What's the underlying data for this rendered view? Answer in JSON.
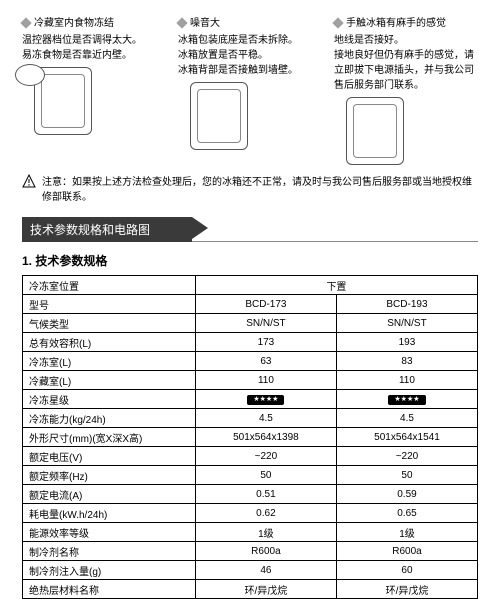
{
  "troubleshoot": {
    "col1": {
      "title": "冷藏室内食物冻结",
      "lines": [
        "温控器档位是否调得太大。",
        "易冻食物是否靠近内壁。"
      ]
    },
    "col2": {
      "title": "噪音大",
      "lines": [
        "冰箱包装底座是否未拆除。",
        "冰箱放置是否平稳。",
        "冰箱背部是否接触到墙壁。"
      ]
    },
    "col3": {
      "title": "手触冰箱有麻手的感觉",
      "lines": [
        "地线是否接好。",
        "接地良好但仍有麻手的感觉，请立即拔下电源插头，并与我公司售后服务部门联系。"
      ]
    }
  },
  "notice": {
    "label": "注意：",
    "text": "如果按上述方法检查处理后，您的冰箱还不正常，请及时与我公司售后服务部或当地授权维修部联系。"
  },
  "section_title": "技术参数规格和电路图",
  "subheading": "1. 技术参数规格",
  "table": {
    "header": {
      "c1": "冷冻室位置",
      "c2": "下置"
    },
    "rows": [
      {
        "label": "型号",
        "v1": "BCD-173",
        "v2": "BCD-193"
      },
      {
        "label": "气候类型",
        "v1": "SN/N/ST",
        "v2": "SN/N/ST"
      },
      {
        "label": "总有效容积(L)",
        "v1": "173",
        "v2": "193"
      },
      {
        "label": "冷冻室(L)",
        "v1": "63",
        "v2": "83"
      },
      {
        "label": "冷藏室(L)",
        "v1": "110",
        "v2": "110"
      },
      {
        "label": "冷冻星级",
        "v1": "__BADGE__",
        "v2": "__BADGE__"
      },
      {
        "label": "冷冻能力(kg/24h)",
        "v1": "4.5",
        "v2": "4.5"
      },
      {
        "label": "外形尺寸(mm)(宽X深X高)",
        "v1": "501x564x1398",
        "v2": "501x564x1541"
      },
      {
        "label": "额定电压(V)",
        "v1": "~220",
        "v2": "~220"
      },
      {
        "label": "额定频率(Hz)",
        "v1": "50",
        "v2": "50"
      },
      {
        "label": "额定电流(A)",
        "v1": "0.51",
        "v2": "0.59"
      },
      {
        "label": "耗电量(kW.h/24h)",
        "v1": "0.62",
        "v2": "0.65"
      },
      {
        "label": "能源效率等级",
        "v1": "1级",
        "v2": "1级"
      },
      {
        "label": "制冷剂名称",
        "v1": "R600a",
        "v2": "R600a"
      },
      {
        "label": "制冷剂注入量(g)",
        "v1": "46",
        "v2": "60"
      },
      {
        "label": "绝热层材料名称",
        "v1": "环/异戊烷",
        "v2": "环/异戊烷"
      }
    ]
  },
  "colors": {
    "section_bg": "#3a3a3a",
    "text": "#000000",
    "diamond": "#a0a0a0"
  }
}
